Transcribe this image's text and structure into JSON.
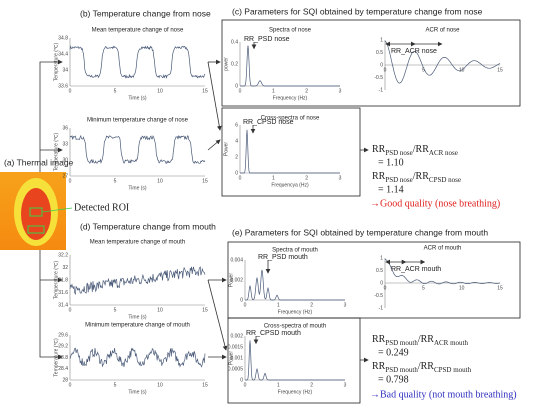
{
  "thermal": {
    "label": "(a) Thermal image",
    "roi": "Detected ROI"
  },
  "nose": {
    "title": "(b) Temperature change from nose",
    "plots": [
      {
        "title": "Mean temperature change of nose",
        "ylabel": "Temperature (℃)",
        "yticks": [
          "34.8",
          "34.4",
          "34",
          "33.6"
        ],
        "xticks": [
          "0",
          "5",
          "10",
          "15"
        ],
        "xlabel": "Time (s)"
      },
      {
        "title": "Minimum temperature change of nose",
        "ylabel": "Temperature (℃)",
        "yticks": [
          "36",
          "33",
          "30",
          "27"
        ],
        "xticks": [
          "0",
          "5",
          "10",
          "15"
        ],
        "xlabel": "Time (s)"
      }
    ]
  },
  "nose_sqi": {
    "title": "(c) Parameters for SQI obtained by temperature change from nose",
    "plots": [
      {
        "title": "Spectra of nose",
        "ylabel": "power",
        "yticks": [
          "0.4",
          "0.2",
          "0"
        ],
        "xticks": [
          "0",
          "1",
          "2",
          "3"
        ],
        "xlabel": "Frequency (Hz)",
        "annotation": "RR_PSD nose"
      },
      {
        "title": "ACR of nose",
        "yticks": [
          "1",
          "0.5",
          "0",
          "-0.5",
          "-1"
        ],
        "xticks": [
          "0",
          "5",
          "10",
          "15"
        ],
        "annotation": "RR_ACR nose"
      },
      {
        "title": "Cross-spectra of nose",
        "ylabel": "Power",
        "yticks": [
          "6",
          "4",
          "2",
          "0"
        ],
        "xticks": [
          "0",
          "1",
          "2",
          "3"
        ],
        "xlabel": "Frequencya (Hz)",
        "annotation": "RR_CPSD nose"
      }
    ],
    "ratios": [
      {
        "num": "RR",
        "num_sub": "PSD nose",
        "den": "/RR",
        "den_sub": "ACR nose",
        "value": "= 1.10"
      },
      {
        "num": "RR",
        "num_sub": "PSD nose",
        "den": "/RR",
        "den_sub": "CPSD nose",
        "value": "= 1.14"
      }
    ],
    "verdict": "→Good quality (nose breathing)"
  },
  "mouth": {
    "title": "(d) Temperature change from mouth",
    "plots": [
      {
        "title": "Mean temperature change of  mouth",
        "ylabel": "Temperature (℃)",
        "yticks": [
          "32.2",
          "32",
          "31.8",
          "31.6",
          "31.4"
        ],
        "xticks": [
          "0",
          "5",
          "10",
          "15"
        ],
        "xlabel": "Time (s)"
      },
      {
        "title": "Minimum temperature change of  mouth",
        "ylabel": "Temperature (℃)",
        "yticks": [
          "29.6",
          "29.2",
          "28.8",
          "28.4",
          "28"
        ],
        "xticks": [
          "0",
          "5",
          "10",
          "15"
        ],
        "xlabel": "Time (s)"
      }
    ]
  },
  "mouth_sqi": {
    "title": "(e) Parameters for SQI obtained by temperature change from mouth",
    "plots": [
      {
        "title": "Spectra of mouth",
        "ylabel": "Power",
        "yticks": [
          "0.004",
          "0.002",
          "0"
        ],
        "xticks": [
          "0",
          "1",
          "2",
          "3"
        ],
        "xlabel": "Frequency (Hz)",
        "annotation": "RR_PSD mouth"
      },
      {
        "title": "ACR of mouth",
        "yticks": [
          "1",
          "0.5",
          "0",
          "-0.5",
          "-1"
        ],
        "xticks": [
          "0",
          "5",
          "10",
          "15"
        ],
        "annotation": "RR_ACR mouth"
      },
      {
        "title": "Cross-spectra of mouth",
        "ylabel": "Power",
        "yticks": [
          "0.002",
          "0.0015",
          "0.001",
          "0.0005",
          "0"
        ],
        "xticks": [
          "0",
          "1",
          "2",
          "3"
        ],
        "xlabel": "Frequency (Hz)",
        "annotation": "RR_CPSD mouth"
      }
    ],
    "ratios": [
      {
        "num": "RR",
        "num_sub": "PSD mouth",
        "den": "/RR",
        "den_sub": "ACR mouth",
        "value": "= 0.249"
      },
      {
        "num": "RR",
        "num_sub": "PSD mouth",
        "den": "/RR",
        "den_sub": "CPSD mouth",
        "value": "= 0.798"
      }
    ],
    "verdict": "→Bad quality (not mouth breathing)"
  }
}
